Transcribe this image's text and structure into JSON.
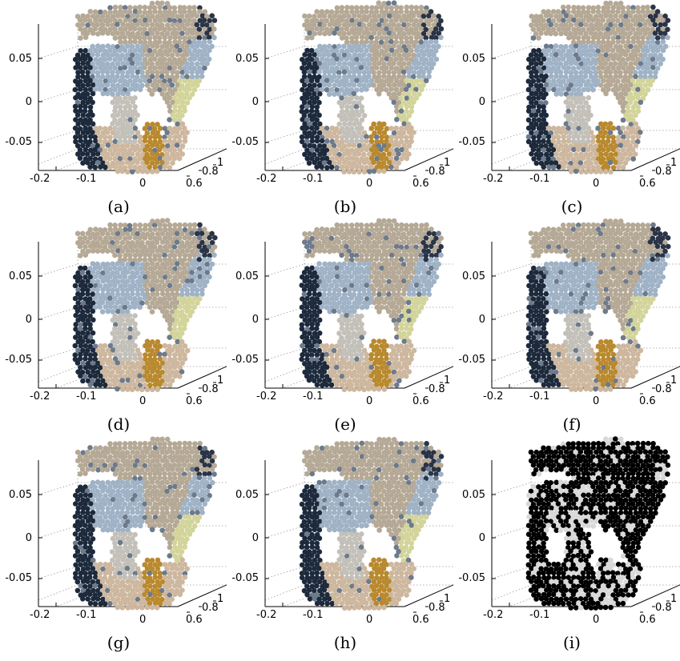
{
  "figure": {
    "panels": [
      {
        "caption": "(a)",
        "mode": "color"
      },
      {
        "caption": "(b)",
        "mode": "color"
      },
      {
        "caption": "(c)",
        "mode": "color"
      },
      {
        "caption": "(d)",
        "mode": "color"
      },
      {
        "caption": "(e)",
        "mode": "color"
      },
      {
        "caption": "(f)",
        "mode": "color"
      },
      {
        "caption": "(g)",
        "mode": "color"
      },
      {
        "caption": "(h)",
        "mode": "color"
      },
      {
        "caption": "(i)",
        "mode": "binary"
      }
    ],
    "y_ticks": [
      "0.05",
      "0",
      "-0.05"
    ],
    "x_ticks": [
      "-0.2",
      "-0.1",
      "0"
    ],
    "depth_ticks": [
      "0.6",
      "0.8",
      "1"
    ],
    "colors": {
      "wall": "#b5a996",
      "floor": "#cdb79e",
      "sky_blue": "#9fb2c6",
      "dark_blue": "#1d2a3c",
      "mug": "#c2c0b8",
      "bottle": "#b9892e",
      "yellow_green": "#d2d49a",
      "binary_dark": "#000000",
      "binary_light": "#d8d8d8"
    }
  }
}
